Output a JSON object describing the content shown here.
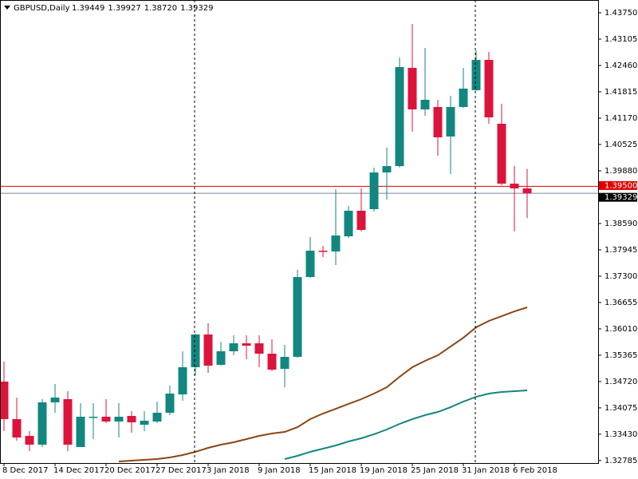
{
  "chart_data": {
    "type": "candlestick",
    "title": "GBPUSD,Daily",
    "header_values": [
      "1.39449",
      "1.39927",
      "1.38720",
      "1.39329"
    ],
    "categories": [
      "8 Dec 2017",
      null,
      null,
      null,
      "14 Dec 2017",
      null,
      null,
      null,
      "20 Dec 2017",
      null,
      null,
      null,
      "27 Dec 2017",
      null,
      null,
      null,
      "3 Jan 2018",
      null,
      null,
      null,
      "9 Jan 2018",
      null,
      null,
      null,
      "15 Jan 2018",
      null,
      null,
      null,
      "19 Jan 2018",
      null,
      null,
      null,
      "25 Jan 2018",
      null,
      null,
      null,
      "31 Jan 2018",
      null,
      null,
      null,
      "6 Feb 2018",
      null
    ],
    "open": [
      1.34718,
      1.33799,
      1.33388,
      1.33174,
      1.3421,
      1.34288,
      1.33115,
      1.33838,
      1.33858,
      1.3374,
      1.33877,
      1.33662,
      1.3374,
      1.33955,
      1.34405,
      1.3507,
      1.35872,
      1.35128,
      1.35461,
      1.35656,
      1.35656,
      1.35402,
      1.35031,
      1.35324,
      1.37279,
      1.37924,
      1.37904,
      1.38276,
      1.38902,
      1.38941,
      1.3984,
      1.39996,
      1.42401,
      1.41384,
      1.41443,
      1.4072,
      1.41443,
      1.41854,
      1.42597,
      1.41033,
      1.39566,
      1.39449
    ],
    "high": [
      1.35207,
      1.34327,
      1.33506,
      1.34288,
      1.34659,
      1.34483,
      1.3419,
      1.3419,
      1.34288,
      1.3419,
      1.33995,
      1.33995,
      1.34229,
      1.3462,
      1.35461,
      1.35891,
      1.36145,
      1.35695,
      1.35852,
      1.35852,
      1.35852,
      1.35754,
      1.35617,
      1.37455,
      1.38257,
      1.38041,
      1.39429,
      1.39019,
      1.39449,
      1.39957,
      1.40446,
      1.42655,
      1.43476,
      1.4289,
      1.41619,
      1.41717,
      1.42401,
      1.42831,
      1.42792,
      1.41521,
      1.39996,
      1.39927
    ],
    "low": [
      1.33506,
      1.33271,
      1.33017,
      1.33115,
      1.33955,
      1.33017,
      1.33115,
      1.3331,
      1.33701,
      1.33349,
      1.33467,
      1.33506,
      1.33701,
      1.33897,
      1.34249,
      1.34874,
      1.34933,
      1.35109,
      1.35363,
      1.35265,
      1.3507,
      1.34972,
      1.34581,
      1.35304,
      1.37259,
      1.37768,
      1.37572,
      1.38237,
      1.38393,
      1.38882,
      1.39175,
      1.39957,
      1.40837,
      1.41228,
      1.40251,
      1.39801,
      1.41424,
      1.41834,
      1.41033,
      1.39527,
      1.38393,
      1.3872
    ],
    "close": [
      1.33799,
      1.33349,
      1.33174,
      1.3421,
      1.34327,
      1.33174,
      1.33858,
      1.33858,
      1.3374,
      1.33858,
      1.33721,
      1.3376,
      1.33955,
      1.34425,
      1.3507,
      1.35872,
      1.35109,
      1.35461,
      1.35656,
      1.35598,
      1.35402,
      1.35011,
      1.35324,
      1.37279,
      1.37924,
      1.37904,
      1.38296,
      1.38902,
      1.38432,
      1.3984,
      1.39996,
      1.42421,
      1.41384,
      1.41619,
      1.407,
      1.41443,
      1.41893,
      1.42597,
      1.41189,
      1.39566,
      1.39449,
      1.39329
    ],
    "up_color": "#12877f",
    "down_color": "#dc143c",
    "ma": [
      {
        "color": "#8b4513",
        "values": [
          null,
          null,
          null,
          null,
          null,
          null,
          null,
          null,
          null,
          1.32763,
          1.32783,
          1.32802,
          1.32822,
          1.32861,
          1.32919,
          1.32998,
          1.33095,
          1.33174,
          1.33232,
          1.3331,
          1.33389,
          1.33447,
          1.33486,
          1.33603,
          1.33799,
          1.33936,
          1.34053,
          1.34171,
          1.34288,
          1.34425,
          1.34581,
          1.34835,
          1.3507,
          1.35226,
          1.35363,
          1.35578,
          1.35793,
          1.36047,
          1.36204,
          1.36321,
          1.36438,
          1.36536
        ]
      },
      {
        "color": "#12877f",
        "values": [
          null,
          null,
          null,
          null,
          null,
          null,
          null,
          null,
          null,
          null,
          null,
          null,
          null,
          null,
          null,
          null,
          null,
          null,
          null,
          null,
          null,
          null,
          1.32822,
          1.329,
          1.32998,
          1.33076,
          1.33154,
          1.33252,
          1.3333,
          1.33428,
          1.33545,
          1.33682,
          1.33799,
          1.33897,
          1.33975,
          1.34092,
          1.34229,
          1.34346,
          1.34425,
          1.34464,
          1.34483,
          1.34503
        ]
      }
    ],
    "price_lines": [
      {
        "value": 1.395,
        "label": "1.39500",
        "color": "#e00000"
      },
      {
        "value": 1.39329,
        "label": "1.39329",
        "color": "#778899"
      }
    ],
    "ylim": [
      1.32724,
      1.44063
    ],
    "yticks": [
      {
        "value": 1.4375,
        "label": "1.43750"
      },
      1.43105,
      {
        "value": 1.4246,
        "label": "1.42460"
      },
      1.41815,
      {
        "value": 1.4117,
        "label": "1.41170"
      },
      1.40525,
      {
        "value": 1.3988,
        "label": "1.39880"
      },
      {
        "value": 1.3859,
        "label": "1.38590"
      },
      1.37945,
      {
        "value": 1.373,
        "label": "1.37300"
      },
      1.36655,
      {
        "value": 1.3601,
        "label": "1.36010"
      },
      1.35365,
      {
        "value": 1.3472,
        "label": "1.34720"
      },
      1.34075,
      {
        "value": 1.3343,
        "label": "1.33430"
      },
      1.32785
    ]
  }
}
